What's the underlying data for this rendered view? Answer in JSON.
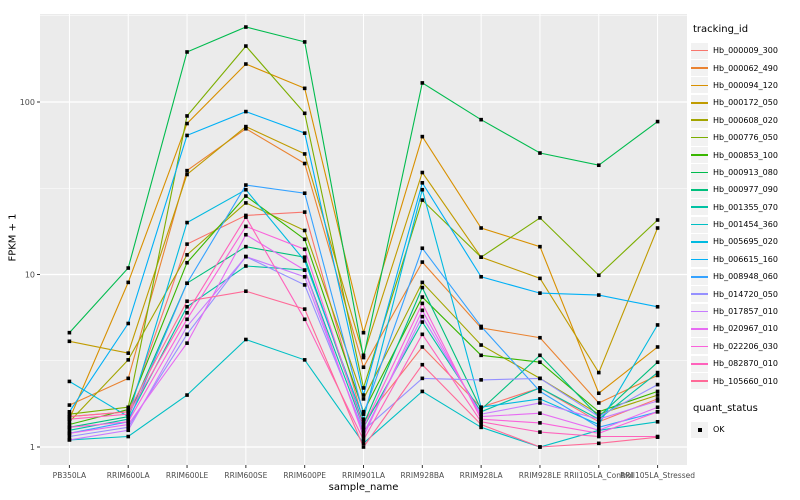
{
  "colors": {
    "panel_bg": "#EBEBEB",
    "grid_major": "#FFFFFF",
    "grid_minor": "#F7F7F7",
    "tick_label": "#4D4D4D",
    "tick_mark": "#333333",
    "axis_title": "#000000",
    "legend_key_bg": "#F2F2F2",
    "point": "#000000"
  },
  "chart_data": {
    "type": "line",
    "title": "",
    "xlabel": "sample_name",
    "ylabel": "FPKM + 1",
    "y_scale": "log10",
    "y_ticks": [
      1,
      10,
      100
    ],
    "ylim": [
      0.79,
      324
    ],
    "grid": "ggplot-gray-on-white-lines",
    "legend_position": "right",
    "legend_title": "tracking_id",
    "quant_legend_title": "quant_status",
    "quant_legend_value": "OK",
    "point_shape": "black-square",
    "x_categories": [
      "PB350LA",
      "RRIM600LA",
      "RRIM600LE",
      "RRIM600SE",
      "RRIM600PE",
      "RRIM901LA",
      "RRIM928BA",
      "RRIM928LA",
      "RRIM928LE",
      "RRII105LA_Control",
      "RRII105LA_Stressed"
    ],
    "series": [
      {
        "name": "Hb_000009_300",
        "color": "#F8766D",
        "values": [
          1.5,
          1.6,
          15,
          22,
          23,
          1.4,
          3.8,
          1.7,
          2.2,
          1.4,
          1.9
        ]
      },
      {
        "name": "Hb_000062_490",
        "color": "#EA8331",
        "values": [
          1.75,
          2.5,
          40,
          70,
          44,
          2.9,
          11.8,
          4.9,
          4.3,
          1.8,
          2.6
        ]
      },
      {
        "name": "Hb_000094_120",
        "color": "#D89000",
        "values": [
          1.45,
          9,
          75,
          166,
          120,
          4.6,
          63,
          18.6,
          14.5,
          2.05,
          3.8
        ]
      },
      {
        "name": "Hb_000172_050",
        "color": "#C09B00",
        "values": [
          4.1,
          3.5,
          38,
          72,
          50,
          3.4,
          39,
          12.6,
          9.5,
          2.7,
          18.6
        ]
      },
      {
        "name": "Hb_000608_020",
        "color": "#A3A500",
        "values": [
          1.4,
          3.2,
          13,
          26,
          18,
          1.9,
          9,
          3.9,
          2.5,
          1.55,
          2
        ]
      },
      {
        "name": "Hb_000776_050",
        "color": "#7CAE00",
        "values": [
          1.55,
          1.7,
          83,
          211,
          86,
          2.2,
          27,
          12.6,
          21.3,
          9.9,
          20.7
        ]
      },
      {
        "name": "Hb_000853_100",
        "color": "#39B600",
        "values": [
          1.35,
          1.65,
          11.7,
          28.5,
          16,
          1.6,
          7.4,
          3.4,
          3.1,
          1.6,
          2.1
        ]
      },
      {
        "name": "Hb_000913_080",
        "color": "#00BB4E",
        "values": [
          4.6,
          10.9,
          195,
          272,
          223,
          3.3,
          129,
          79,
          50.6,
          43,
          77
        ]
      },
      {
        "name": "Hb_000977_090",
        "color": "#00BF7D",
        "values": [
          1.3,
          1.5,
          8.9,
          14.5,
          12.6,
          1.35,
          8.4,
          1.65,
          3.4,
          1.5,
          3.1
        ]
      },
      {
        "name": "Hb_001355_070",
        "color": "#00C1A3",
        "values": [
          1.25,
          1.45,
          6.5,
          11.2,
          10.6,
          1.3,
          5.3,
          1.6,
          2.2,
          1.45,
          2.7
        ]
      },
      {
        "name": "Hb_001454_360",
        "color": "#00BFC4",
        "values": [
          1.1,
          1.15,
          2,
          4.2,
          3.2,
          1.05,
          2.1,
          1.3,
          1,
          1.25,
          1.4
        ]
      },
      {
        "name": "Hb_005695_020",
        "color": "#00BAE0",
        "values": [
          2.4,
          1.5,
          20,
          31,
          12,
          1.45,
          31,
          1.7,
          1.9,
          1.35,
          5.1
        ]
      },
      {
        "name": "Hb_006615_160",
        "color": "#00B0F6",
        "values": [
          1.6,
          5.2,
          64,
          88,
          66,
          2,
          34,
          9.7,
          7.8,
          7.6,
          6.5
        ]
      },
      {
        "name": "Hb_008948_060",
        "color": "#35A2FF",
        "values": [
          1.2,
          1.4,
          8.9,
          33,
          29.6,
          1.55,
          14.2,
          5,
          2.1,
          1.3,
          1.6
        ]
      },
      {
        "name": "Hb_014720_050",
        "color": "#9590FF",
        "values": [
          1.15,
          1.3,
          4.5,
          12.7,
          8.7,
          1.25,
          2.5,
          2.45,
          2.5,
          1.5,
          2.3
        ]
      },
      {
        "name": "Hb_017857_010",
        "color": "#C77CFF",
        "values": [
          1.1,
          1.25,
          5,
          12.7,
          9.7,
          1.2,
          5.7,
          1.55,
          1.8,
          1.45,
          1.85
        ]
      },
      {
        "name": "Hb_020967_010",
        "color": "#E76BF3",
        "values": [
          1.2,
          1.35,
          4,
          17,
          10.6,
          1.15,
          6.2,
          1.5,
          1.57,
          1.25,
          1.7
        ]
      },
      {
        "name": "Hb_022206_030",
        "color": "#FA62DB",
        "values": [
          1.3,
          1.4,
          5.5,
          19,
          14,
          1.3,
          6.8,
          1.45,
          1.38,
          1.2,
          1.6
        ]
      },
      {
        "name": "Hb_082870_010",
        "color": "#FF62BC",
        "values": [
          1.45,
          1.55,
          6,
          21.5,
          5.5,
          1.1,
          4.5,
          1.4,
          1.22,
          1.15,
          1.15
        ]
      },
      {
        "name": "Hb_105660_010",
        "color": "#FF6A98",
        "values": [
          1.5,
          1.6,
          7,
          8,
          6.3,
          1,
          3,
          1.35,
          1,
          1.05,
          1.14
        ]
      }
    ]
  }
}
